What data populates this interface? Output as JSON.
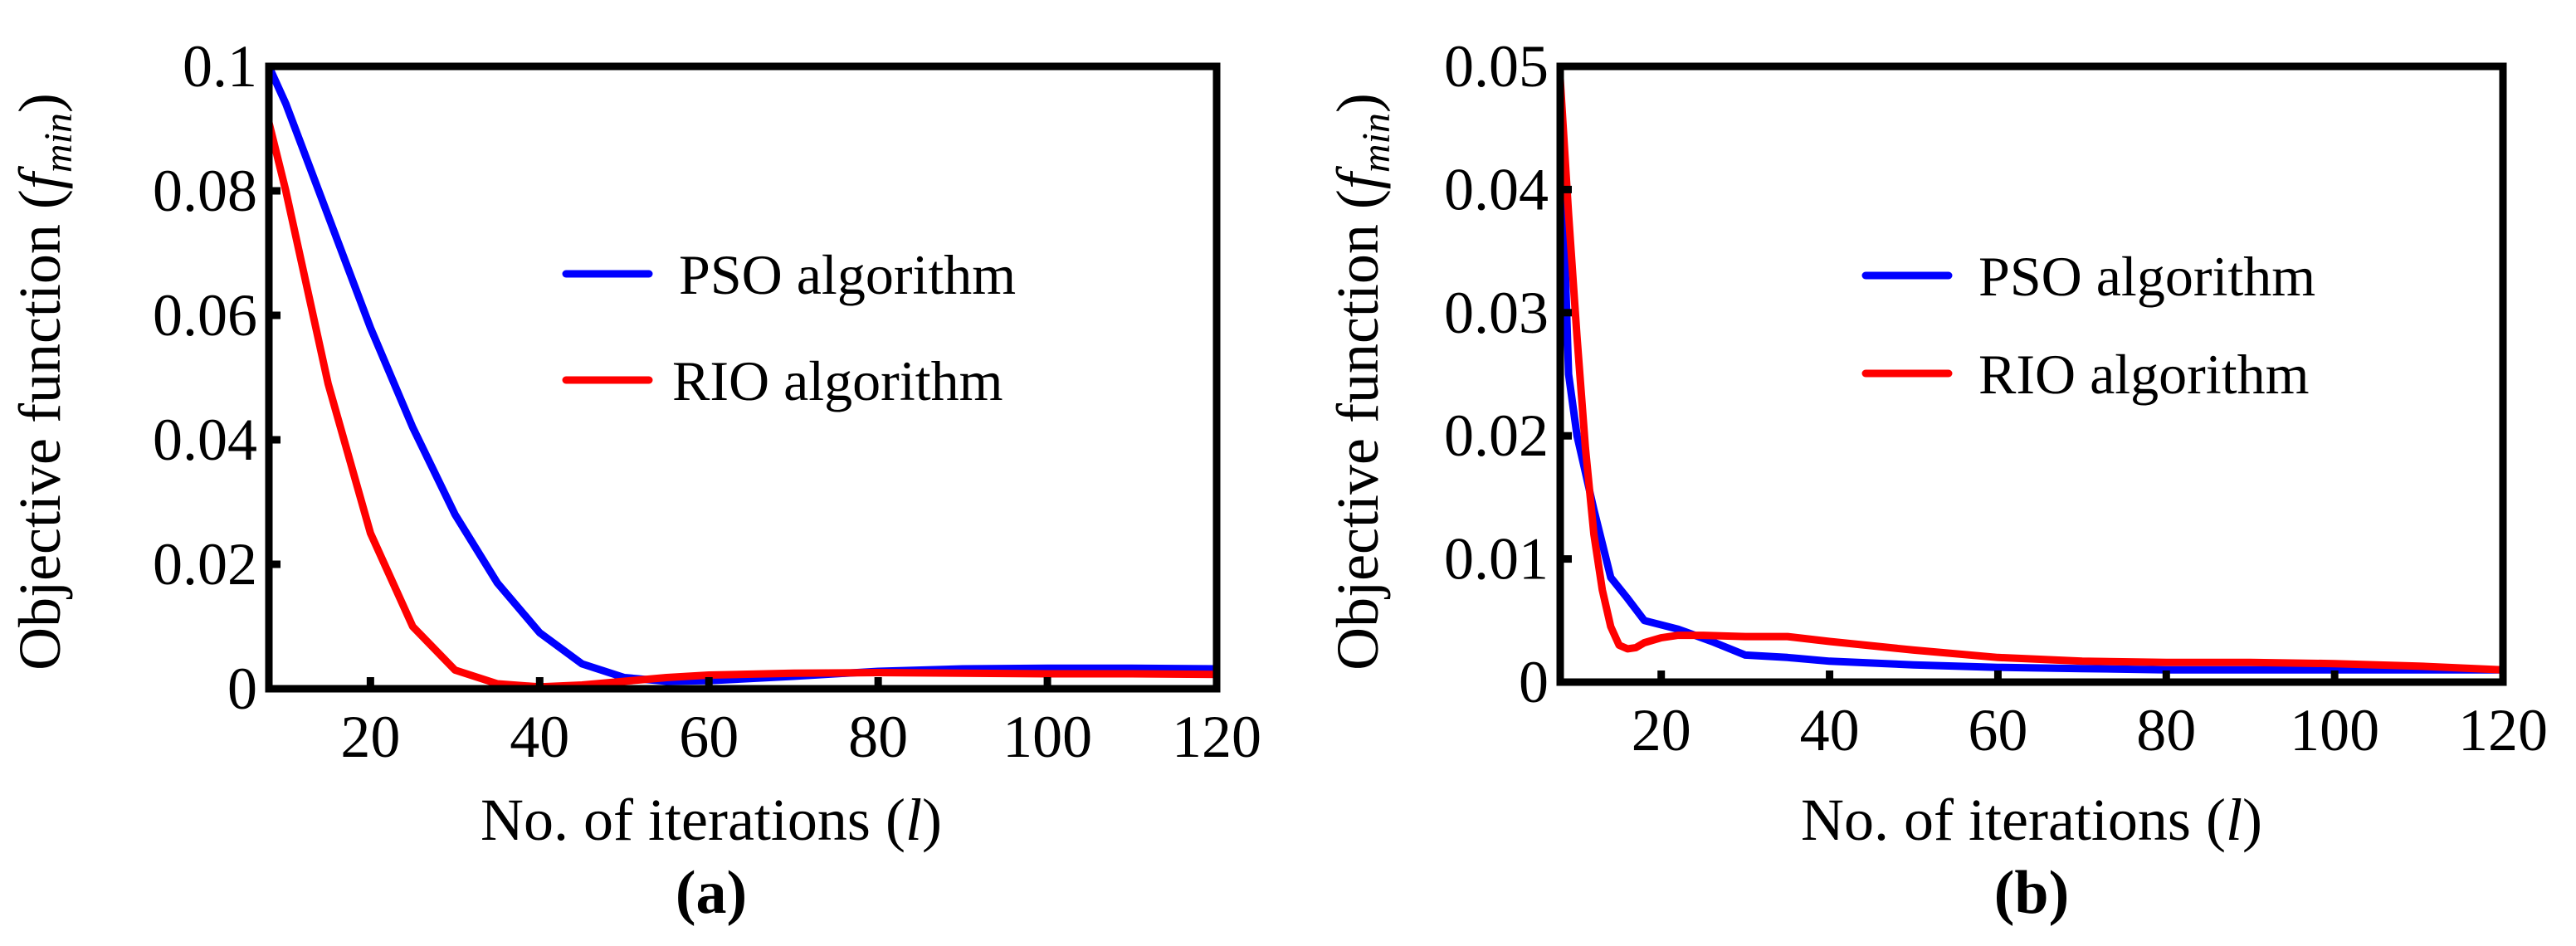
{
  "chart_data": [
    {
      "type": "line",
      "panel_label": "(a)",
      "xlabel": "No. of iterations",
      "xlabel_var": "l",
      "ylabel": "Objective function",
      "ylabel_var": "f",
      "ylabel_sub": "min",
      "xlim": [
        8,
        120
      ],
      "ylim": [
        0,
        0.1
      ],
      "xticks": [
        20,
        40,
        60,
        80,
        100,
        120
      ],
      "xtick_labels": [
        "20",
        "40",
        "60",
        "80",
        "100",
        "120"
      ],
      "yticks": [
        0,
        0.02,
        0.04,
        0.06,
        0.08,
        0.1
      ],
      "ytick_labels": [
        "0",
        "0.02",
        "0.04",
        "0.06",
        "0.08",
        "0.1"
      ],
      "grid": false,
      "legend_position": "right-middle",
      "series": [
        {
          "name": "PSO algorithm",
          "color": "#0000ff",
          "x": [
            8,
            10,
            15,
            20,
            25,
            30,
            35,
            40,
            45,
            50,
            55,
            60,
            70,
            80,
            90,
            100,
            110,
            120
          ],
          "y": [
            0.1,
            0.094,
            0.076,
            0.058,
            0.042,
            0.028,
            0.017,
            0.009,
            0.004,
            0.0018,
            0.0012,
            0.0013,
            0.002,
            0.0028,
            0.0032,
            0.0033,
            0.0033,
            0.0032
          ]
        },
        {
          "name": "RIO algorithm",
          "color": "#ff0000",
          "x": [
            8,
            10,
            15,
            20,
            25,
            30,
            35,
            40,
            45,
            50,
            55,
            60,
            70,
            80,
            90,
            100,
            110,
            120
          ],
          "y": [
            0.091,
            0.08,
            0.049,
            0.025,
            0.01,
            0.003,
            0.0008,
            0.0003,
            0.0006,
            0.0012,
            0.0018,
            0.0022,
            0.0025,
            0.0026,
            0.0025,
            0.0024,
            0.0024,
            0.0023
          ]
        }
      ]
    },
    {
      "type": "line",
      "panel_label": "(b)",
      "xlabel": "No. of iterations",
      "xlabel_var": "l",
      "ylabel": "Objective function",
      "ylabel_var": "f",
      "ylabel_sub": "min",
      "xlim": [
        8,
        120
      ],
      "ylim": [
        0,
        0.05
      ],
      "xticks": [
        20,
        40,
        60,
        80,
        100,
        120
      ],
      "xtick_labels": [
        "20",
        "40",
        "60",
        "80",
        "100",
        "120"
      ],
      "yticks": [
        0,
        0.01,
        0.02,
        0.03,
        0.04,
        0.05
      ],
      "ytick_labels": [
        "0",
        "0.01",
        "0.02",
        "0.03",
        "0.04",
        "0.05"
      ],
      "grid": false,
      "legend_position": "right-middle",
      "series": [
        {
          "name": "PSO algorithm",
          "color": "#0000ff",
          "x": [
            8,
            9,
            10,
            12,
            14,
            16,
            18,
            22,
            26,
            30,
            35,
            40,
            50,
            60,
            70,
            80,
            90,
            100,
            110,
            120
          ],
          "y": [
            0.047,
            0.025,
            0.02,
            0.014,
            0.0085,
            0.0068,
            0.005,
            0.0043,
            0.0033,
            0.0022,
            0.002,
            0.0017,
            0.0014,
            0.0012,
            0.0011,
            0.001,
            0.001,
            0.001,
            0.001,
            0.001
          ]
        },
        {
          "name": "RIO algorithm",
          "color": "#ff0000",
          "x": [
            8,
            9,
            10,
            11,
            12,
            13,
            14,
            15,
            16,
            17,
            18,
            20,
            22,
            25,
            30,
            35,
            40,
            50,
            60,
            70,
            80,
            90,
            100,
            110,
            120
          ],
          "y": [
            0.049,
            0.038,
            0.028,
            0.019,
            0.012,
            0.0075,
            0.0045,
            0.003,
            0.0027,
            0.0028,
            0.0032,
            0.0036,
            0.0038,
            0.0038,
            0.0037,
            0.0037,
            0.0033,
            0.0026,
            0.002,
            0.0017,
            0.0016,
            0.0016,
            0.0015,
            0.0013,
            0.001
          ]
        }
      ]
    }
  ]
}
